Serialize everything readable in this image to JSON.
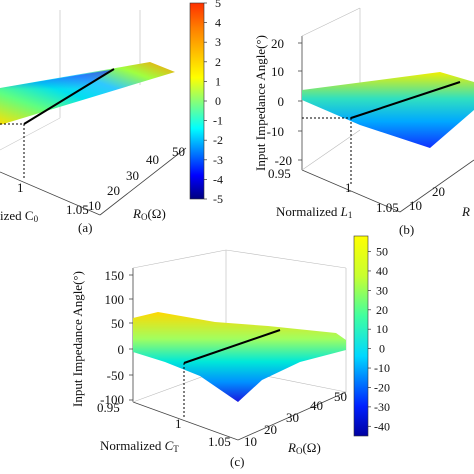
{
  "chart_data": [
    {
      "type": "surface3d",
      "panel_label": "(a)",
      "xlabel_prefix": "Normalized ",
      "xlabel_symbol": "C",
      "xlabel_sub": "0",
      "xlabel_visible": "ized C",
      "x_ticks": [
        "1",
        "1.05"
      ],
      "ylabel_symbol": "R",
      "ylabel_sub": "O",
      "ylabel_unit": "(Ω)",
      "y_ticks": [
        "10",
        "20",
        "30",
        "40",
        "50"
      ],
      "zlabel": "",
      "colorbar": {
        "min": -5,
        "max": 5,
        "ticks": [
          "5",
          "4",
          "3",
          "2",
          "1",
          "0",
          "-1",
          "-2",
          "-3",
          "-4",
          "-5"
        ]
      }
    },
    {
      "type": "surface3d",
      "panel_label": "(b)",
      "xlabel_prefix": "Normalized ",
      "xlabel_symbol": "L",
      "xlabel_sub": "1",
      "x_ticks": [
        "0.95",
        "1",
        "1.05"
      ],
      "ylabel_symbol": "R",
      "y_ticks": [
        "10",
        "20"
      ],
      "zlabel": "Input Impedance Angle(°)",
      "z_ticks": [
        "20",
        "10",
        "0",
        "-10",
        "-20"
      ],
      "zlim": [
        -20,
        20
      ]
    },
    {
      "type": "surface3d",
      "panel_label": "(c)",
      "xlabel_prefix": "Normalized ",
      "xlabel_symbol": "C",
      "xlabel_sub": "T",
      "x_ticks": [
        "0.95",
        "1",
        "1.05"
      ],
      "ylabel_symbol": "R",
      "ylabel_sub": "O",
      "ylabel_unit": "(Ω)",
      "y_ticks": [
        "10",
        "20",
        "30",
        "40",
        "50"
      ],
      "zlabel": "Input Impedance Angle(°)",
      "z_ticks": [
        "150",
        "100",
        "50",
        "0",
        "-50",
        "-100"
      ],
      "zlim": [
        -100,
        150
      ],
      "colorbar": {
        "min": -45,
        "max": 58,
        "ticks": [
          "50",
          "40",
          "30",
          "20",
          "10",
          "0",
          "-10",
          "-20",
          "-30",
          "-40"
        ]
      }
    }
  ],
  "colors": {
    "jet": [
      "#00007f",
      "#0000ff",
      "#0080ff",
      "#00ffff",
      "#80ff80",
      "#ffff00",
      "#ff8000"
    ],
    "axis": "#333333",
    "curve": "#000000"
  }
}
